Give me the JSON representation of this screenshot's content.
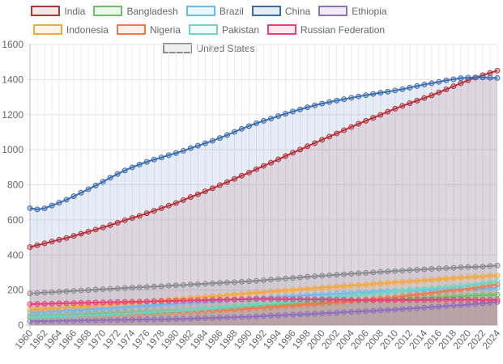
{
  "chart_data": {
    "type": "area",
    "title": "",
    "xlabel": "",
    "ylabel": "",
    "ylim": [
      0,
      1600
    ],
    "yticks": [
      0,
      200,
      400,
      600,
      800,
      1000,
      1200,
      1400,
      1600
    ],
    "grid": true,
    "legend_position": "top",
    "x": [
      1960,
      1961,
      1962,
      1963,
      1964,
      1965,
      1966,
      1967,
      1968,
      1969,
      1970,
      1971,
      1972,
      1973,
      1974,
      1975,
      1976,
      1977,
      1978,
      1979,
      1980,
      1981,
      1982,
      1983,
      1984,
      1985,
      1986,
      1987,
      1988,
      1989,
      1990,
      1991,
      1992,
      1993,
      1994,
      1995,
      1996,
      1997,
      1998,
      1999,
      2000,
      2001,
      2002,
      2003,
      2004,
      2005,
      2006,
      2007,
      2008,
      2009,
      2010,
      2011,
      2012,
      2013,
      2014,
      2015,
      2016,
      2017,
      2018,
      2019,
      2020,
      2021,
      2022,
      2023,
      2024
    ],
    "series": [
      {
        "name": "India",
        "color": "#b3333b",
        "values": [
          445,
          456,
          466,
          477,
          487,
          497,
          509,
          521,
          533,
          545,
          557,
          570,
          584,
          598,
          611,
          623,
          638,
          652,
          667,
          681,
          696,
          713,
          730,
          746,
          763,
          780,
          798,
          816,
          834,
          852,
          870,
          889,
          908,
          926,
          945,
          964,
          983,
          1001,
          1020,
          1038,
          1057,
          1075,
          1093,
          1111,
          1130,
          1148,
          1165,
          1182,
          1199,
          1217,
          1234,
          1250,
          1265,
          1280,
          1295,
          1310,
          1327,
          1344,
          1362,
          1379,
          1396,
          1411,
          1425,
          1438,
          1451
        ]
      },
      {
        "name": "Bangladesh",
        "color": "#6dbf6d",
        "values": [
          50,
          52,
          53,
          55,
          57,
          59,
          60,
          62,
          64,
          65,
          67,
          69,
          70,
          72,
          73,
          75,
          77,
          78,
          80,
          81,
          83,
          85,
          88,
          90,
          93,
          95,
          97,
          100,
          102,
          105,
          107,
          109,
          111,
          114,
          116,
          118,
          120,
          122,
          125,
          127,
          129,
          131,
          133,
          135,
          137,
          139,
          140,
          142,
          144,
          146,
          148,
          150,
          152,
          154,
          156,
          158,
          159,
          161,
          163,
          165,
          167,
          169,
          171,
          172,
          174
        ]
      },
      {
        "name": "Brazil",
        "color": "#6cb8f5",
        "values": [
          72,
          74,
          77,
          79,
          81,
          84,
          86,
          88,
          91,
          93,
          95,
          98,
          100,
          103,
          106,
          109,
          111,
          114,
          117,
          119,
          122,
          125,
          128,
          130,
          133,
          136,
          139,
          142,
          144,
          147,
          150,
          153,
          155,
          158,
          160,
          163,
          165,
          168,
          170,
          173,
          175,
          177,
          179,
          181,
          183,
          186,
          188,
          190,
          192,
          194,
          196,
          197,
          198,
          200,
          201,
          202,
          203,
          204,
          206,
          207,
          208,
          209,
          210,
          211,
          212
        ]
      },
      {
        "name": "China",
        "color": "#3d6cb0",
        "values": [
          667,
          660,
          666,
          682,
          698,
          715,
          735,
          755,
          775,
          796,
          818,
          841,
          862,
          882,
          900,
          916,
          931,
          944,
          956,
          969,
          981,
          994,
          1009,
          1023,
          1037,
          1051,
          1067,
          1084,
          1102,
          1119,
          1135,
          1151,
          1165,
          1178,
          1192,
          1205,
          1218,
          1230,
          1242,
          1253,
          1263,
          1272,
          1280,
          1288,
          1296,
          1304,
          1311,
          1318,
          1325,
          1331,
          1338,
          1345,
          1354,
          1363,
          1372,
          1379,
          1387,
          1396,
          1402,
          1408,
          1411,
          1412,
          1412,
          1410,
          1409
        ]
      },
      {
        "name": "Ethiopia",
        "color": "#8f6ec0",
        "values": [
          22,
          23,
          23,
          24,
          25,
          26,
          26,
          27,
          28,
          28,
          29,
          30,
          30,
          31,
          31,
          32,
          33,
          33,
          34,
          34,
          35,
          36,
          37,
          39,
          40,
          41,
          43,
          44,
          45,
          47,
          48,
          50,
          52,
          54,
          56,
          58,
          60,
          61,
          63,
          65,
          67,
          69,
          71,
          74,
          76,
          78,
          80,
          82,
          85,
          87,
          89,
          92,
          95,
          97,
          100,
          103,
          106,
          109,
          112,
          114,
          117,
          121,
          124,
          128,
          132
        ]
      },
      {
        "name": "Indonesia",
        "color": "#f5a83c",
        "values": [
          88,
          91,
          93,
          96,
          99,
          101,
          104,
          107,
          109,
          112,
          115,
          118,
          122,
          125,
          128,
          131,
          135,
          138,
          141,
          145,
          148,
          151,
          155,
          158,
          162,
          165,
          168,
          172,
          175,
          179,
          182,
          185,
          188,
          192,
          195,
          198,
          201,
          204,
          208,
          211,
          214,
          217,
          220,
          223,
          226,
          229,
          232,
          235,
          238,
          241,
          244,
          247,
          250,
          253,
          256,
          259,
          262,
          265,
          268,
          271,
          274,
          276,
          278,
          281,
          283
        ]
      },
      {
        "name": "Nigeria",
        "color": "#f5784a",
        "values": [
          45,
          46,
          47,
          48,
          49,
          51,
          52,
          53,
          54,
          55,
          56,
          58,
          59,
          61,
          62,
          64,
          66,
          67,
          69,
          70,
          72,
          74,
          77,
          79,
          81,
          84,
          86,
          88,
          90,
          93,
          95,
          98,
          100,
          103,
          106,
          109,
          111,
          114,
          117,
          119,
          122,
          126,
          130,
          133,
          137,
          141,
          145,
          149,
          153,
          156,
          160,
          165,
          170,
          174,
          179,
          184,
          189,
          194,
          198,
          203,
          208,
          214,
          220,
          227,
          233
        ]
      },
      {
        "name": "Pakistan",
        "color": "#6dd6c8",
        "values": [
          45,
          46,
          48,
          49,
          51,
          52,
          53,
          55,
          56,
          58,
          59,
          61,
          63,
          65,
          67,
          70,
          72,
          74,
          76,
          78,
          80,
          83,
          87,
          90,
          94,
          97,
          101,
          104,
          108,
          111,
          115,
          119,
          123,
          127,
          131,
          135,
          138,
          142,
          146,
          150,
          154,
          158,
          162,
          166,
          170,
          174,
          178,
          182,
          186,
          190,
          194,
          197,
          201,
          204,
          207,
          210,
          214,
          217,
          220,
          224,
          227,
          233,
          239,
          245,
          251
        ]
      },
      {
        "name": "Russian Federation",
        "color": "#e8407a",
        "values": [
          120,
          121,
          122,
          123,
          124,
          125,
          126,
          127,
          128,
          129,
          130,
          131,
          132,
          133,
          134,
          134,
          135,
          136,
          137,
          138,
          139,
          140,
          141,
          142,
          143,
          144,
          145,
          146,
          147,
          148,
          148,
          149,
          149,
          149,
          148,
          148,
          148,
          148,
          147,
          147,
          147,
          146,
          145,
          145,
          144,
          143,
          143,
          142,
          142,
          142,
          143,
          143,
          143,
          143,
          144,
          144,
          145,
          145,
          145,
          145,
          145,
          144,
          144,
          144,
          144
        ]
      },
      {
        "name": "United States",
        "color": "#8a8a8e",
        "values": [
          181,
          183,
          186,
          188,
          191,
          193,
          195,
          198,
          200,
          203,
          205,
          207,
          209,
          212,
          214,
          216,
          218,
          220,
          222,
          225,
          227,
          229,
          232,
          234,
          236,
          239,
          241,
          243,
          245,
          248,
          250,
          253,
          256,
          260,
          263,
          266,
          269,
          272,
          276,
          279,
          282,
          285,
          287,
          290,
          293,
          296,
          298,
          301,
          304,
          306,
          309,
          311,
          314,
          316,
          318,
          321,
          323,
          325,
          327,
          330,
          332,
          332,
          334,
          337,
          340
        ]
      }
    ]
  }
}
